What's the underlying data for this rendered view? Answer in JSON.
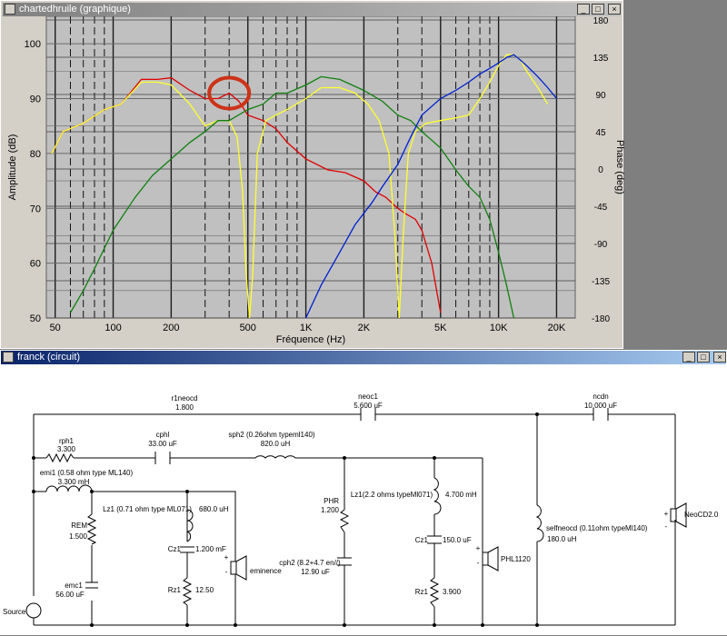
{
  "chart_window": {
    "title": "chartedhruile (graphique)",
    "buttons": [
      "_",
      "□",
      "×"
    ]
  },
  "circuit_window": {
    "title": "franck (circuit)",
    "buttons": [
      "_",
      "□",
      "×"
    ]
  },
  "chart_data": {
    "type": "line",
    "xlabel": "Fréquence (Hz)",
    "ylabel": "Amplitude (dB)",
    "y2label": "Phase (deg)",
    "xscale": "log",
    "xlim": [
      45,
      25000
    ],
    "ylim": [
      50,
      105
    ],
    "y2lim": [
      -180,
      180
    ],
    "x_ticks": [
      "50",
      "100",
      "200",
      "500",
      "1K",
      "2K",
      "5K",
      "10K",
      "20K"
    ],
    "x_tick_values": [
      50,
      100,
      200,
      500,
      1000,
      2000,
      5000,
      10000,
      20000
    ],
    "y_ticks": [
      50,
      60,
      70,
      80,
      90,
      100
    ],
    "y2_ticks": [
      180,
      135,
      90,
      45,
      0,
      -45,
      -90,
      -135,
      -180
    ],
    "grid": true,
    "colors": {
      "plot_bg": "#c0c0c0",
      "red": "#e00000",
      "yellow": "#ffff30",
      "green": "#108010",
      "blue": "#0020d0",
      "marker": "#cc3318"
    },
    "series": [
      {
        "color": "#e00000",
        "x": [
          48,
          55,
          70,
          90,
          110,
          140,
          170,
          200,
          250,
          300,
          350,
          400,
          450,
          500,
          600,
          700,
          800,
          1000,
          1300,
          1600,
          2000,
          2300,
          2600,
          3000,
          3300,
          3700,
          4000,
          4500,
          5000
        ],
        "y": [
          80,
          84,
          85.5,
          88,
          89,
          93.5,
          93.5,
          93.8,
          91.5,
          90,
          90,
          91,
          89.5,
          87,
          86,
          84.5,
          82,
          79,
          77,
          76.5,
          75,
          73,
          72,
          70,
          69,
          68,
          66,
          60,
          51
        ]
      },
      {
        "color": "#ffff30",
        "x": [
          48,
          55,
          70,
          90,
          110,
          140,
          170,
          200,
          250,
          300,
          350,
          400,
          440,
          470,
          490,
          510,
          530,
          560,
          620,
          700,
          800,
          1000,
          1200,
          1500,
          1800,
          2100,
          2400,
          2700,
          2900,
          3050,
          3200,
          3400,
          3700,
          4200,
          5000,
          6000,
          7000,
          8000,
          9000,
          10000,
          11000,
          12000,
          13000,
          14000,
          16000,
          18000
        ],
        "y": [
          80,
          84,
          85.5,
          88,
          89,
          93,
          93,
          92.5,
          89,
          85,
          86,
          86,
          83,
          73,
          58,
          50,
          58,
          80,
          86,
          87,
          88,
          90,
          92,
          92,
          91,
          89,
          86,
          80,
          65,
          50,
          65,
          80,
          84,
          85.5,
          86,
          86.5,
          87,
          90,
          93,
          96,
          98,
          98,
          97,
          95,
          92,
          89
        ]
      },
      {
        "color": "#108010",
        "x": [
          60,
          70,
          80,
          100,
          130,
          160,
          200,
          250,
          300,
          350,
          400,
          500,
          600,
          700,
          800,
          1000,
          1200,
          1500,
          2000,
          2500,
          3000,
          3500,
          4000,
          5000,
          6000,
          7000,
          8000,
          9000,
          10000,
          11000,
          12000
        ],
        "y": [
          51,
          55,
          59,
          66,
          72,
          76,
          79,
          82,
          84,
          86,
          86,
          88,
          89,
          91,
          91,
          92.5,
          94,
          93.5,
          91.5,
          89.5,
          87,
          86,
          84,
          81,
          77,
          74,
          72,
          68,
          62,
          56,
          50
        ]
      },
      {
        "color": "#0020d0",
        "x": [
          1000,
          1200,
          1500,
          1800,
          2200,
          2500,
          3000,
          3500,
          4000,
          5000,
          6000,
          7000,
          8000,
          9000,
          10000,
          11000,
          12000,
          13000,
          14000,
          16000,
          18000,
          20000
        ],
        "y": [
          50,
          56,
          62,
          67,
          71,
          74,
          78,
          83,
          87,
          90,
          91.5,
          93,
          94.5,
          95.5,
          96.5,
          97.5,
          98,
          97,
          96,
          94,
          92,
          90
        ]
      }
    ]
  },
  "circuit": {
    "components": {
      "r1neocd": {
        "name": "r1neocd",
        "value": "1.800"
      },
      "neoc1": {
        "name": "neoc1",
        "value": "5.600 uF"
      },
      "ncdn": {
        "name": "ncdn",
        "value": "10.000 uF"
      },
      "rph1": {
        "name": "rph1",
        "value": "3.300"
      },
      "cphl": {
        "name": "cphl",
        "value": "33.00 uF"
      },
      "sph2": {
        "name": "sph2 (0.26ohm typeml140)",
        "value": "820.0 uH"
      },
      "emi1": {
        "name": "emi1 (0.58 ohm type ML140)",
        "value": "3.300 mH"
      },
      "lz1_a": {
        "name": "Lz1 (0.71 ohm type ML071)",
        "value": "680.0 uH"
      },
      "rem": {
        "name": "REM",
        "value": "1.500"
      },
      "cz1_a": {
        "name": "Cz1",
        "value": "1.200 mF"
      },
      "rz1_a": {
        "name": "Rz1",
        "value": "12.50"
      },
      "emc1": {
        "name": "emc1",
        "value": "56.00 uF"
      },
      "phr": {
        "name": "PHR",
        "value": "1.200"
      },
      "cph2": {
        "name": "cph2 (8.2+4.7 en//)",
        "value": "12.90 uF"
      },
      "lz1_b": {
        "name": "Lz1(2.2 ohms typeMl071)",
        "value": "4.700 mH"
      },
      "cz1_b": {
        "name": "Cz1",
        "value": "150.0 uF"
      },
      "rz1_b": {
        "name": "Rz1",
        "value": "3.900"
      },
      "selfneocd": {
        "name": "selfneocd (0.11ohm typeMl140)",
        "value": "180.0 uH"
      }
    },
    "speakers": {
      "eminence": "eminence",
      "phl1120": "PHL1120",
      "neocd": "NeoCD2.0"
    },
    "source_label": "Source",
    "speaker_marks": {
      "plus": "+",
      "minus": "-"
    }
  }
}
